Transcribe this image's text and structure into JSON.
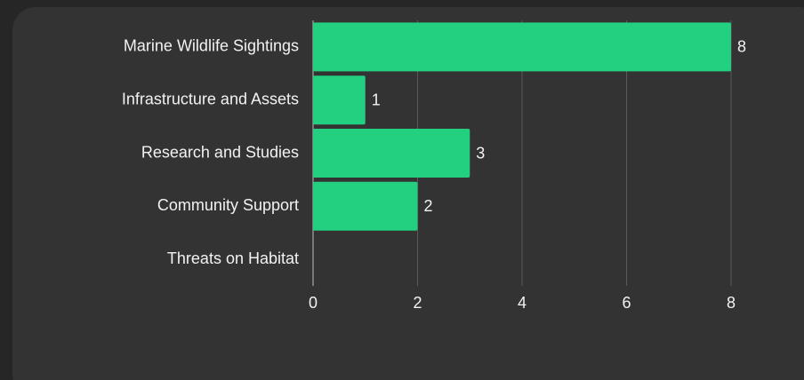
{
  "chart_data": {
    "type": "bar",
    "orientation": "horizontal",
    "categories": [
      "Marine Wildlife Sightings",
      "Infrastructure and Assets",
      "Research and Studies",
      "Community Support",
      "Threats on Habitat"
    ],
    "values": [
      8,
      1,
      3,
      2,
      0
    ],
    "color": "#22d07f",
    "xlim": [
      0,
      8
    ],
    "xticks": [
      0,
      2,
      4,
      6,
      8
    ],
    "grid": true
  }
}
